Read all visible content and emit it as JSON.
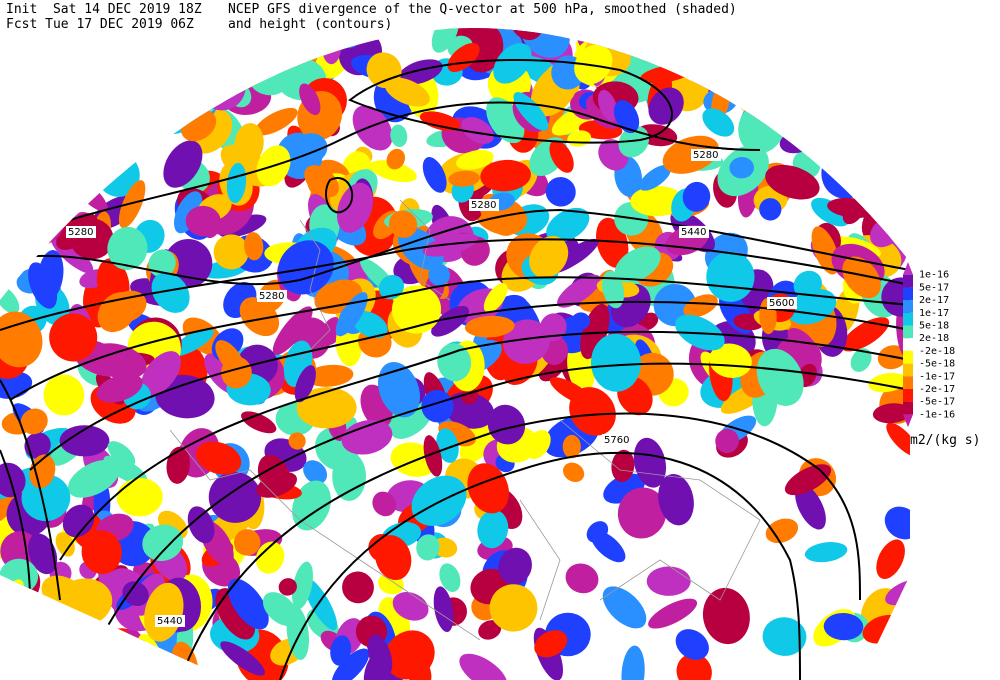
{
  "header": {
    "init": "Init  Sat 14 DEC 2019 18Z",
    "fcst": "Fcst Tue 17 DEC 2019 06Z",
    "title": "NCEP GFS divergence of the Q-vector at 500 hPa, smoothed (shaded)",
    "subtitle": "and height (contours)"
  },
  "contour_labels": [
    "5280",
    "5280",
    "5280",
    "5280",
    "5440",
    "5600",
    "5760",
    "5440"
  ],
  "colorbar": {
    "labels": [
      "1e-16",
      "5e-17",
      "2e-17",
      "1e-17",
      "5e-18",
      "2e-18",
      "-2e-18",
      "-5e-18",
      "-1e-17",
      "-2e-17",
      "-5e-17",
      "-1e-16"
    ],
    "colors": [
      "#c030c0",
      "#7010b0",
      "#2040ff",
      "#2a90ff",
      "#10c8e8",
      "#50e8b8",
      "#ffffff",
      "#ffff00",
      "#ffc400",
      "#ff7c00",
      "#ff1800",
      "#b80040",
      "#c020a0"
    ],
    "unit": "m2/(kg s)"
  }
}
